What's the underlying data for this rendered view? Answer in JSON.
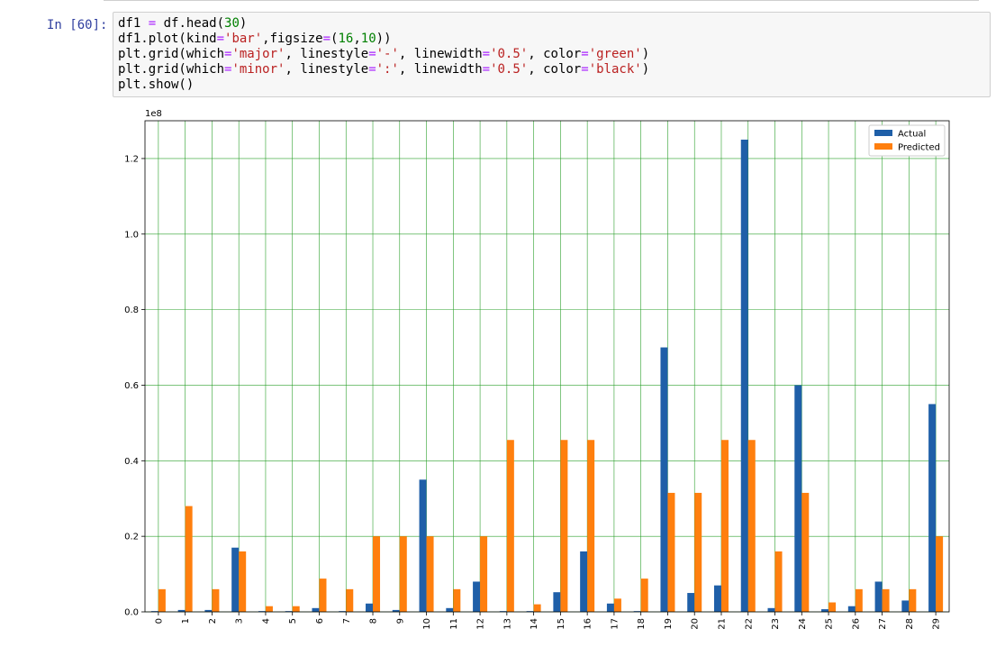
{
  "cell": {
    "prompt": "In [60]:",
    "code_lines": [
      [
        [
          "df1 ",
          ""
        ],
        [
          "=",
          "op"
        ],
        [
          " df.head(",
          ""
        ],
        [
          "30",
          "num"
        ],
        [
          ")",
          ""
        ]
      ],
      [
        [
          "df1.plot(kind",
          ""
        ],
        [
          "=",
          "op"
        ],
        [
          "'bar'",
          "str"
        ],
        [
          ",figsize",
          ""
        ],
        [
          "=",
          "op"
        ],
        [
          "(",
          ""
        ],
        [
          "16",
          "num"
        ],
        [
          ",",
          ""
        ],
        [
          "10",
          "num"
        ],
        [
          "))",
          ""
        ]
      ],
      [
        [
          "plt.grid(which",
          ""
        ],
        [
          "=",
          "op"
        ],
        [
          "'major'",
          "str"
        ],
        [
          ", linestyle",
          ""
        ],
        [
          "=",
          "op"
        ],
        [
          "'-'",
          "str"
        ],
        [
          ", linewidth",
          ""
        ],
        [
          "=",
          "op"
        ],
        [
          "'0.5'",
          "str"
        ],
        [
          ", color",
          ""
        ],
        [
          "=",
          "op"
        ],
        [
          "'green'",
          "str"
        ],
        [
          ")",
          ""
        ]
      ],
      [
        [
          "plt.grid(which",
          ""
        ],
        [
          "=",
          "op"
        ],
        [
          "'minor'",
          "str"
        ],
        [
          ", linestyle",
          ""
        ],
        [
          "=",
          "op"
        ],
        [
          "':'",
          "str"
        ],
        [
          ", linewidth",
          ""
        ],
        [
          "=",
          "op"
        ],
        [
          "'0.5'",
          "str"
        ],
        [
          ", color",
          ""
        ],
        [
          "=",
          "op"
        ],
        [
          "'black'",
          "str"
        ],
        [
          ")",
          ""
        ]
      ],
      [
        [
          "plt.show()",
          ""
        ]
      ]
    ]
  },
  "colors": {
    "actual": "#1f5fa8",
    "predicted": "#ff7f0e",
    "grid_major": "#2ca02c"
  },
  "chart_data": {
    "type": "bar",
    "title": "",
    "xlabel": "",
    "ylabel": "",
    "y_offset_label": "1e8",
    "categories": [
      "0",
      "1",
      "2",
      "3",
      "4",
      "5",
      "6",
      "7",
      "8",
      "9",
      "10",
      "11",
      "12",
      "13",
      "14",
      "15",
      "16",
      "17",
      "18",
      "19",
      "20",
      "21",
      "22",
      "23",
      "24",
      "25",
      "26",
      "27",
      "28",
      "29"
    ],
    "series": [
      {
        "name": "Actual",
        "values": [
          0.002,
          0.005,
          0.005,
          0.17,
          0.002,
          0.002,
          0.01,
          0.002,
          0.022,
          0.005,
          0.35,
          0.01,
          0.08,
          0.002,
          0.002,
          0.052,
          0.16,
          0.022,
          0.002,
          0.7,
          0.05,
          0.07,
          1.25,
          0.01,
          0.6,
          0.007,
          0.015,
          0.08,
          0.03,
          0.55
        ]
      },
      {
        "name": "Predicted",
        "values": [
          0.06,
          0.28,
          0.06,
          0.16,
          0.015,
          0.015,
          0.088,
          0.06,
          0.2,
          0.2,
          0.2,
          0.06,
          0.2,
          0.455,
          0.02,
          0.455,
          0.455,
          0.035,
          0.088,
          0.315,
          0.315,
          0.455,
          0.455,
          0.16,
          0.315,
          0.025,
          0.06,
          0.06,
          0.06,
          0.2
        ]
      }
    ],
    "yticks": [
      0.0,
      0.2,
      0.4,
      0.6,
      0.8,
      1.0,
      1.2
    ],
    "ytick_labels": [
      "0.0",
      "0.2",
      "0.4",
      "0.6",
      "0.8",
      "1.0",
      "1.2"
    ],
    "ylim": [
      0,
      1.3
    ],
    "grid": true,
    "legend_position": "top-right"
  }
}
